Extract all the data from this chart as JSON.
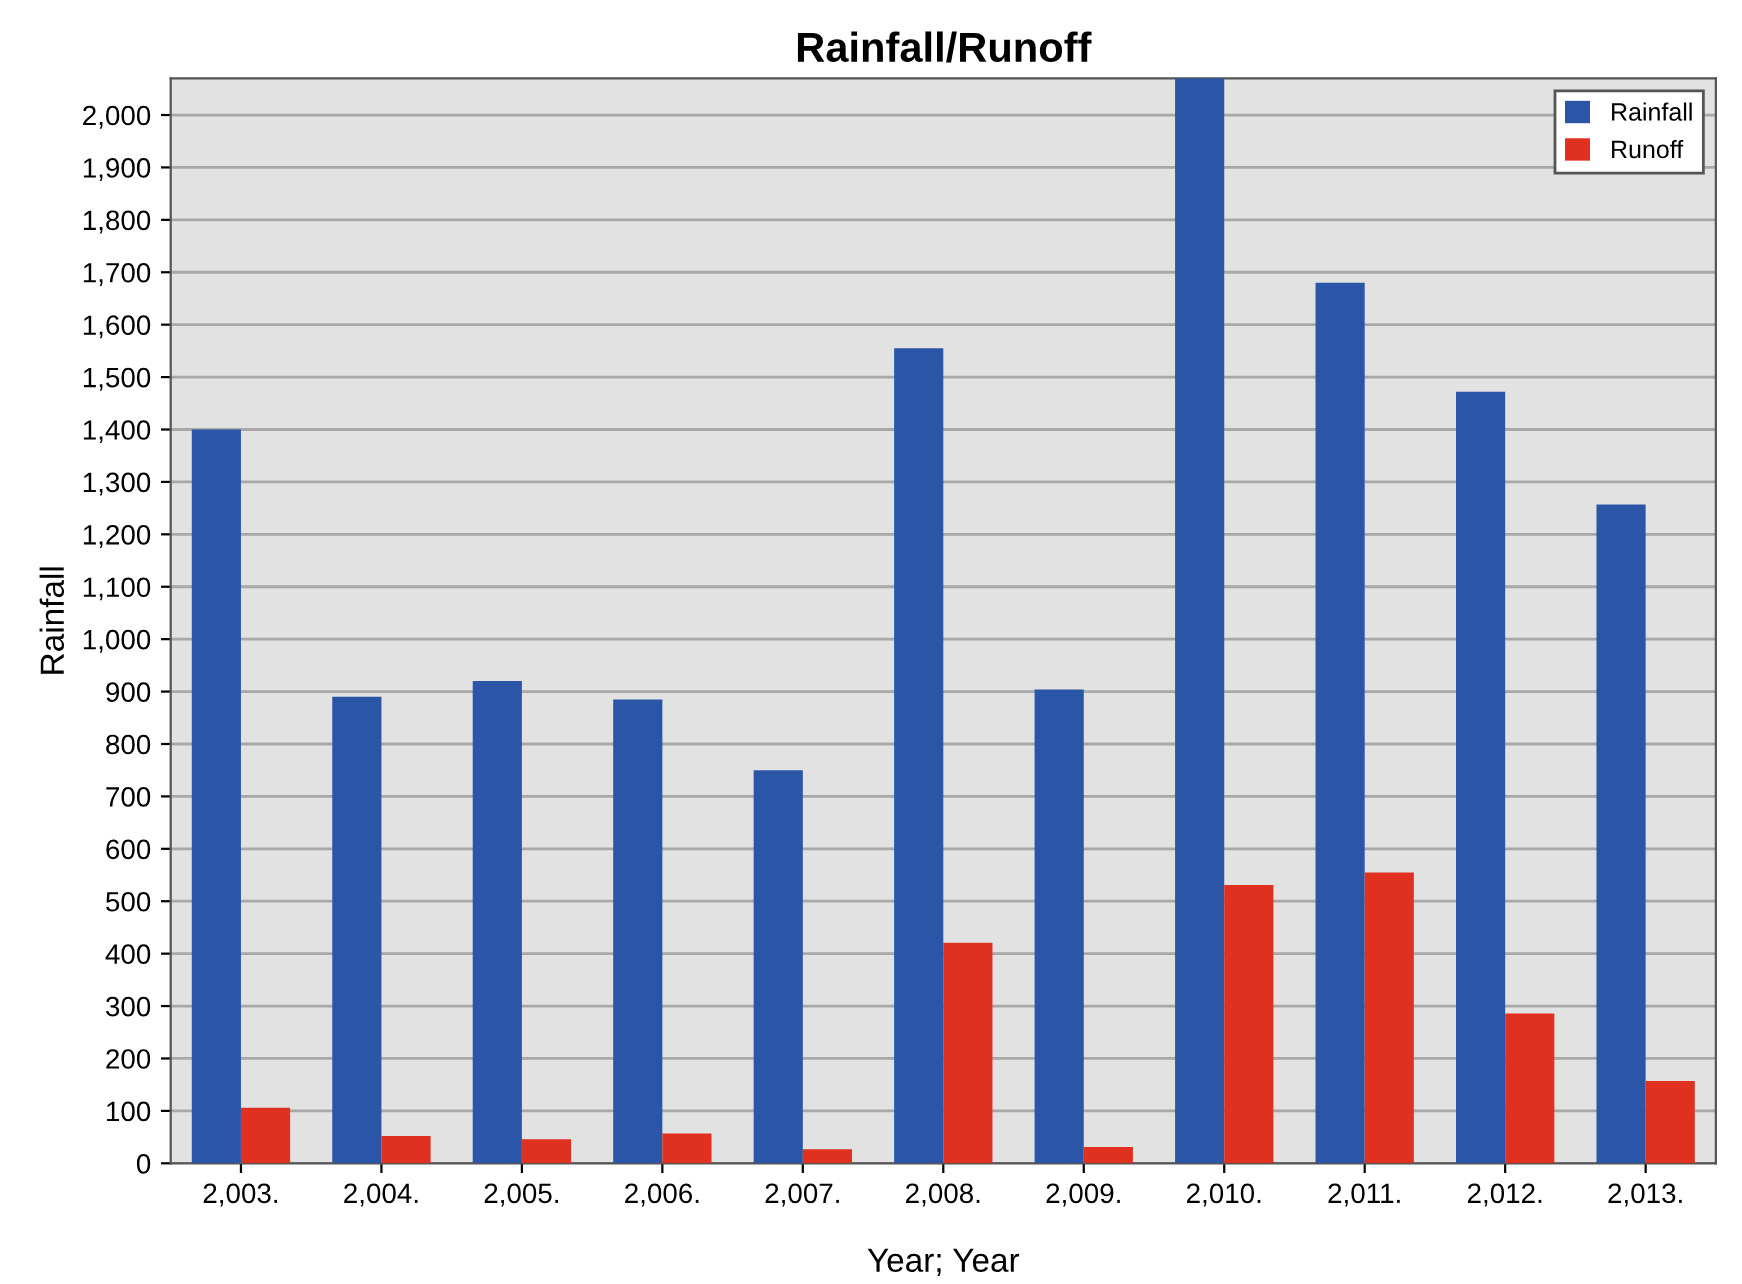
{
  "chart_data": {
    "type": "bar",
    "title": "Rainfall/Runoff",
    "xlabel": "Year; Year",
    "ylabel": "Rainfall",
    "categories": [
      "2,003.",
      "2,004.",
      "2,005.",
      "2,006.",
      "2,007.",
      "2,008.",
      "2,009.",
      "2,010.",
      "2,011.",
      "2,012.",
      "2,013."
    ],
    "series": [
      {
        "name": "Rainfall",
        "color": "#2b56a8",
        "values": [
          1400,
          890,
          920,
          885,
          750,
          1555,
          904,
          2070,
          1680,
          1472,
          1257
        ]
      },
      {
        "name": "Runoff",
        "color": "#e03020",
        "values": [
          106,
          52,
          46,
          57,
          27,
          421,
          31,
          531,
          555,
          286,
          157
        ]
      }
    ],
    "ylim": [
      0,
      2070
    ],
    "yticks": [
      0,
      100,
      200,
      300,
      400,
      500,
      600,
      700,
      800,
      900,
      {
        "value": 1000,
        "label": "1,000"
      },
      {
        "value": 1100,
        "label": "1,100"
      },
      {
        "value": 1200,
        "label": "1,200"
      },
      {
        "value": 1300,
        "label": "1,300"
      },
      {
        "value": 1400,
        "label": "1,400"
      },
      {
        "value": 1500,
        "label": "1,500"
      },
      {
        "value": 1600,
        "label": "1,600"
      },
      {
        "value": 1700,
        "label": "1,700"
      },
      {
        "value": 1800,
        "label": "1,800"
      },
      {
        "value": 1900,
        "label": "1,900"
      },
      {
        "value": 2000,
        "label": "2,000"
      }
    ],
    "grid": "y",
    "legend": "top right"
  }
}
